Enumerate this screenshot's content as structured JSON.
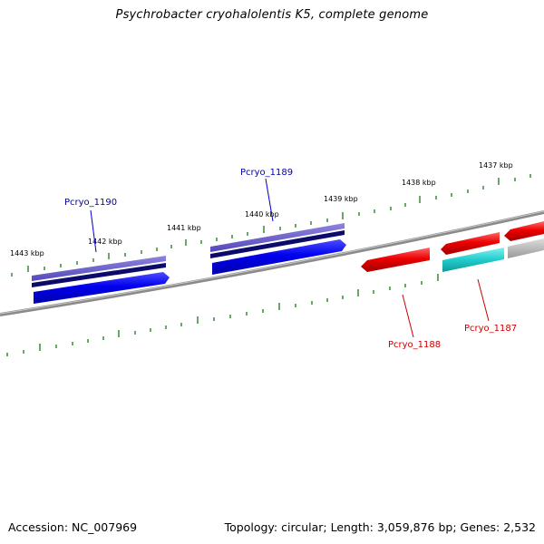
{
  "title": "Psychrobacter cryohalolentis K5, complete genome",
  "footer": {
    "accession": "Accession: NC_007969",
    "summary": "Topology: circular; Length: 3,059,876 bp; Genes: 2,532"
  },
  "colors": {
    "backbone": "#8a8a8a",
    "tick": "#1a7a1a",
    "forward_gene": "#0000ee",
    "forward_cds_light": "#6a5acd",
    "forward_cds_dark": "#0b0b6b",
    "reverse_gene": "#ee0000",
    "reverse_rna": "#22cccc",
    "other_gene": "#aaaaaa",
    "forward_label": "#0000aa",
    "reverse_label": "#cc0000"
  },
  "scale_labels": [
    "1443 kbp",
    "1442 kbp",
    "1441 kbp",
    "1440 kbp",
    "1439 kbp",
    "1438 kbp",
    "1437 kbp"
  ],
  "gene_labels": {
    "pcryo_1190": "Pcryo_1190",
    "pcryo_1189": "Pcryo_1189",
    "pcryo_1188": "Pcryo_1188",
    "pcryo_1187": "Pcryo_1187"
  }
}
